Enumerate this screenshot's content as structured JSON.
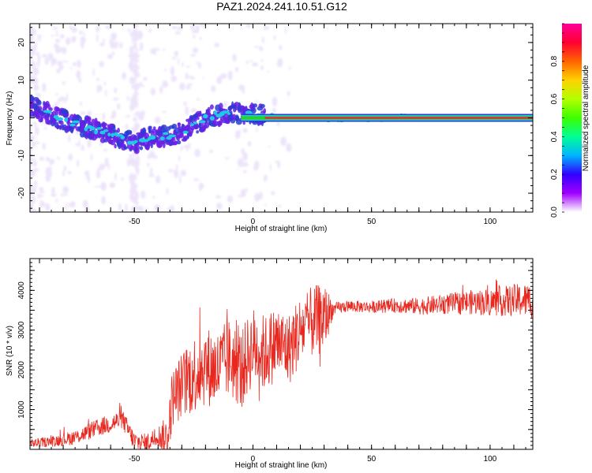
{
  "figure": {
    "title": "PAZ1.2024.241.10.51.G12"
  },
  "colors": {
    "frame": "#000000",
    "snr_line": "#e8281e",
    "spectrum_ridge": "#e8283c",
    "spectrum_green": "#28d228",
    "spectrum_cyan": "#1ec8e6",
    "spectrum_blue": "#2a3cd2",
    "spectrum_violet": "#6a1ee6",
    "spectrum_faint": "#d8c4f4"
  },
  "colorbar": {
    "label": "Normalized spectral amplitude",
    "ticks": [
      "0.0",
      "0.2",
      "0.4",
      "0.6",
      "0.8"
    ],
    "range": [
      0,
      1
    ],
    "stops": [
      "#ffffff",
      "#a000ff",
      "#3000ff",
      "#00b4ff",
      "#00ff96",
      "#3cff00",
      "#b4ff00",
      "#ffd200",
      "#ff6400",
      "#ff0032",
      "#ff0096"
    ]
  },
  "chart_data": [
    {
      "type": "heatmap",
      "title": "",
      "xlabel": "Height of straight line (km)",
      "ylabel": "Frequency (Hz)",
      "xlim": [
        -94,
        118
      ],
      "ylim": [
        -25,
        25
      ],
      "xticks": [
        -50,
        0,
        50,
        100
      ],
      "yticks": [
        -20,
        -10,
        0,
        10,
        20
      ],
      "ridge": {
        "x": [
          -94,
          -88,
          -82,
          -76,
          -70,
          -64,
          -58,
          -54,
          -50,
          -46,
          -42,
          -38,
          -34,
          -30,
          -26,
          -22,
          -18,
          -14,
          -10,
          -6,
          -2,
          2,
          6,
          10,
          20,
          40,
          60,
          80,
          100,
          118
        ],
        "y": [
          3,
          1.5,
          0,
          -1.5,
          -2.5,
          -3.5,
          -5,
          -6,
          -6.5,
          -5.5,
          -5,
          -5,
          -4.5,
          -4,
          -2,
          -1,
          0.5,
          0.8,
          1,
          1.2,
          1,
          0.8,
          0.5,
          0.2,
          0,
          0,
          0,
          0,
          0,
          0
        ]
      }
    },
    {
      "type": "line",
      "title": "",
      "xlabel": "Height of straight line (km)",
      "ylabel": "SNR (10 * v/v)",
      "xlim": [
        -94,
        118
      ],
      "ylim": [
        0,
        4800
      ],
      "xticks": [
        -50,
        0,
        50,
        100
      ],
      "yticks": [
        1000,
        2000,
        3000,
        4000
      ],
      "series": [
        {
          "envelope": {
            "x": [
              -94,
              -85,
              -75,
              -65,
              -55,
              -50,
              -45,
              -40,
              -36,
              -34,
              -30,
              -25,
              -20,
              -15,
              -10,
              -5,
              0,
              5,
              10,
              15,
              20,
              25,
              30,
              33,
              35,
              40,
              50,
              60,
              70,
              80,
              90,
              100,
              110,
              118
            ],
            "y": [
              150,
              200,
              300,
              550,
              750,
              200,
              150,
              350,
              250,
              1300,
              1600,
              1900,
              2100,
              2000,
              2300,
              2000,
              2600,
              2400,
              2700,
              2500,
              3000,
              3200,
              3300,
              3500,
              3550,
              3600,
              3580,
              3620,
              3600,
              3650,
              3700,
              3700,
              3750,
              3750
            ]
          },
          "noise": {
            "x": [
              -94,
              -60,
              -40,
              -35,
              -25,
              -10,
              0,
              20,
              30,
              34,
              50,
              80,
              100,
              118
            ],
            "y": [
              100,
              250,
              250,
              700,
              1000,
              1000,
              1000,
              900,
              900,
              150,
              150,
              250,
              350,
              450
            ]
          }
        }
      ]
    }
  ]
}
